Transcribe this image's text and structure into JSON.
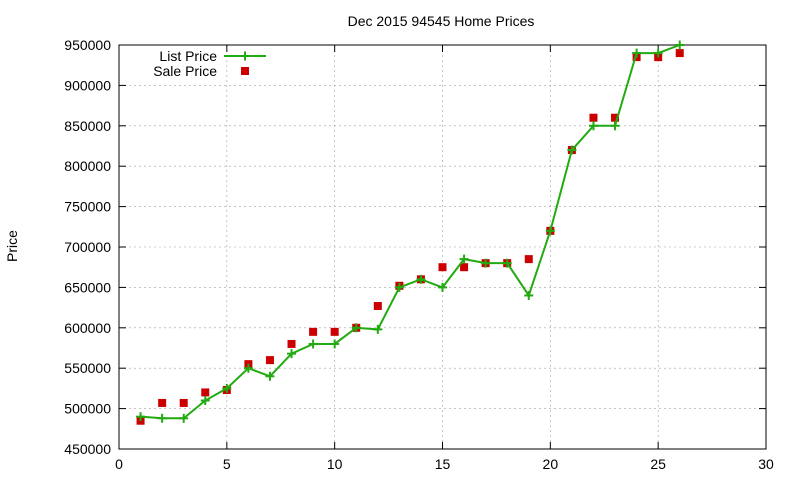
{
  "chart_data": {
    "type": "line",
    "title": "Dec 2015 94545 Home Prices",
    "xlabel": "",
    "ylabel": "Price",
    "xlim": [
      0,
      30
    ],
    "ylim": [
      450000,
      950000
    ],
    "x_ticks": [
      "0",
      "5",
      "10",
      "15",
      "20",
      "25",
      "30"
    ],
    "y_ticks": [
      "450000",
      "500000",
      "550000",
      "600000",
      "650000",
      "700000",
      "750000",
      "800000",
      "850000",
      "900000",
      "950000"
    ],
    "grid": true,
    "legend_position": "top-left",
    "series": [
      {
        "name": "List Price",
        "style": "line-with-plus-markers",
        "color": "#22aa11",
        "x": [
          1,
          2,
          3,
          4,
          5,
          6,
          7,
          8,
          9,
          10,
          11,
          12,
          13,
          14,
          15,
          16,
          17,
          18,
          19,
          20,
          21,
          22,
          23,
          24,
          25,
          26
        ],
        "y": [
          490000,
          488000,
          488000,
          510000,
          525000,
          550000,
          540000,
          568000,
          580000,
          580000,
          600000,
          598000,
          650000,
          660000,
          650000,
          685000,
          680000,
          680000,
          640000,
          720000,
          820000,
          850000,
          850000,
          940000,
          940000,
          950000
        ]
      },
      {
        "name": "Sale Price",
        "style": "square-markers",
        "color": "#cc0000",
        "x": [
          1,
          2,
          3,
          4,
          5,
          6,
          7,
          8,
          9,
          10,
          11,
          12,
          13,
          14,
          15,
          16,
          17,
          18,
          19,
          20,
          21,
          22,
          23,
          24,
          25,
          26
        ],
        "y": [
          485000,
          507000,
          507000,
          520000,
          523000,
          555000,
          560000,
          580000,
          595000,
          595000,
          600000,
          627000,
          652000,
          660000,
          675000,
          675000,
          680000,
          680000,
          685000,
          720000,
          820000,
          860000,
          860000,
          935000,
          935000,
          940000
        ]
      }
    ]
  }
}
